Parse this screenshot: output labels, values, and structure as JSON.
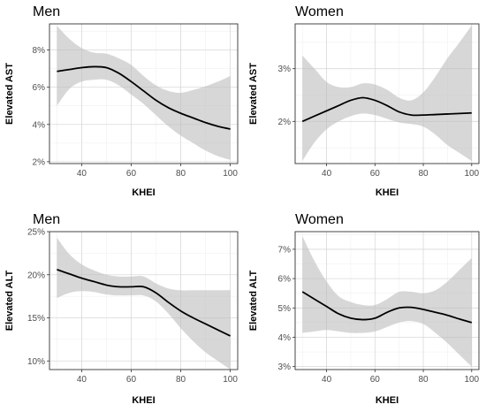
{
  "chart_data": [
    {
      "type": "line",
      "title": "Men",
      "xlabel": "KHEI",
      "ylabel": "Elevated AST",
      "xlim": [
        27,
        103
      ],
      "ylim": [
        1.9,
        9.4
      ],
      "x_ticks": [
        40,
        60,
        80,
        100
      ],
      "x_tick_labels": [
        "40",
        "60",
        "80",
        "100"
      ],
      "y_ticks": [
        2,
        4,
        6,
        8
      ],
      "y_tick_labels": [
        "2%",
        "4%",
        "6%",
        "8%"
      ],
      "grid": true,
      "band_color": "#bdbdbd",
      "line_color": "#000000",
      "series": [
        {
          "x": [
            30,
            35,
            40,
            45,
            50,
            55,
            60,
            65,
            70,
            75,
            80,
            85,
            90,
            95,
            100
          ],
          "y": [
            6.85,
            6.95,
            7.05,
            7.1,
            7.05,
            6.75,
            6.3,
            5.8,
            5.3,
            4.9,
            4.6,
            4.35,
            4.1,
            3.9,
            3.75
          ],
          "lower": [
            5.0,
            5.9,
            6.3,
            6.4,
            6.4,
            6.1,
            5.6,
            5.1,
            4.5,
            3.9,
            3.4,
            3.0,
            2.6,
            2.3,
            2.1
          ],
          "upper": [
            9.3,
            8.6,
            8.1,
            7.85,
            7.8,
            7.55,
            7.2,
            6.6,
            6.1,
            5.8,
            5.7,
            5.85,
            6.05,
            6.3,
            6.6
          ]
        }
      ]
    },
    {
      "type": "line",
      "title": "Women",
      "xlabel": "KHEI",
      "ylabel": "Elevated AST",
      "xlim": [
        27,
        103
      ],
      "ylim": [
        1.2,
        3.85
      ],
      "x_ticks": [
        40,
        60,
        80,
        100
      ],
      "x_tick_labels": [
        "40",
        "60",
        "80",
        "100"
      ],
      "y_ticks": [
        2,
        3
      ],
      "y_tick_labels": [
        "2%",
        "3%"
      ],
      "grid": true,
      "band_color": "#bdbdbd",
      "line_color": "#000000",
      "series": [
        {
          "x": [
            30,
            35,
            40,
            45,
            50,
            55,
            60,
            65,
            70,
            75,
            80,
            85,
            90,
            95,
            100
          ],
          "y": [
            2.0,
            2.1,
            2.2,
            2.3,
            2.4,
            2.45,
            2.4,
            2.3,
            2.18,
            2.12,
            2.12,
            2.13,
            2.14,
            2.15,
            2.16
          ],
          "lower": [
            1.25,
            1.6,
            1.85,
            2.0,
            2.1,
            2.15,
            2.12,
            2.05,
            1.98,
            1.95,
            1.9,
            1.75,
            1.55,
            1.4,
            1.25
          ],
          "upper": [
            3.25,
            3.0,
            2.75,
            2.65,
            2.65,
            2.72,
            2.7,
            2.6,
            2.45,
            2.4,
            2.55,
            2.85,
            3.2,
            3.5,
            3.82
          ]
        }
      ]
    },
    {
      "type": "line",
      "title": "Men",
      "xlabel": "KHEI",
      "ylabel": "Elevated ALT",
      "xlim": [
        27,
        103
      ],
      "ylim": [
        9.0,
        25.0
      ],
      "x_ticks": [
        40,
        60,
        80,
        100
      ],
      "x_tick_labels": [
        "40",
        "60",
        "80",
        "100"
      ],
      "y_ticks": [
        10,
        15,
        20,
        25
      ],
      "y_tick_labels": [
        "10%",
        "15%",
        "20%",
        "25%"
      ],
      "grid": true,
      "band_color": "#bdbdbd",
      "line_color": "#000000",
      "series": [
        {
          "x": [
            30,
            35,
            40,
            45,
            50,
            55,
            60,
            65,
            70,
            75,
            80,
            85,
            90,
            95,
            100
          ],
          "y": [
            20.6,
            20.1,
            19.6,
            19.2,
            18.8,
            18.6,
            18.6,
            18.6,
            17.9,
            16.8,
            15.8,
            15.0,
            14.3,
            13.6,
            12.9
          ],
          "lower": [
            17.3,
            17.9,
            18.1,
            18.0,
            17.7,
            17.6,
            17.6,
            17.6,
            16.9,
            15.5,
            13.8,
            12.3,
            11.0,
            10.0,
            9.0
          ],
          "upper": [
            24.3,
            22.4,
            21.2,
            20.5,
            20.0,
            19.8,
            19.8,
            19.8,
            19.0,
            18.4,
            18.2,
            18.2,
            18.2,
            18.2,
            18.2
          ]
        }
      ]
    },
    {
      "type": "line",
      "title": "Women",
      "xlabel": "KHEI",
      "ylabel": "Elevated ALT",
      "xlim": [
        27,
        103
      ],
      "ylim": [
        2.9,
        7.6
      ],
      "x_ticks": [
        40,
        60,
        80,
        100
      ],
      "x_tick_labels": [
        "40",
        "60",
        "80",
        "100"
      ],
      "y_ticks": [
        3,
        4,
        5,
        6,
        7
      ],
      "y_tick_labels": [
        "3%",
        "4%",
        "5%",
        "6%",
        "7%"
      ],
      "grid": true,
      "band_color": "#bdbdbd",
      "line_color": "#000000",
      "series": [
        {
          "x": [
            30,
            35,
            40,
            45,
            50,
            55,
            60,
            65,
            70,
            75,
            80,
            85,
            90,
            95,
            100
          ],
          "y": [
            5.55,
            5.3,
            5.05,
            4.8,
            4.65,
            4.6,
            4.65,
            4.85,
            5.0,
            5.02,
            4.95,
            4.85,
            4.75,
            4.62,
            4.5
          ],
          "lower": [
            4.15,
            4.2,
            4.25,
            4.2,
            4.15,
            4.15,
            4.2,
            4.35,
            4.5,
            4.55,
            4.45,
            4.15,
            3.8,
            3.4,
            3.0
          ],
          "upper": [
            7.45,
            6.6,
            5.9,
            5.4,
            5.2,
            5.1,
            5.1,
            5.3,
            5.55,
            5.55,
            5.5,
            5.6,
            5.9,
            6.3,
            6.7
          ]
        }
      ]
    }
  ]
}
